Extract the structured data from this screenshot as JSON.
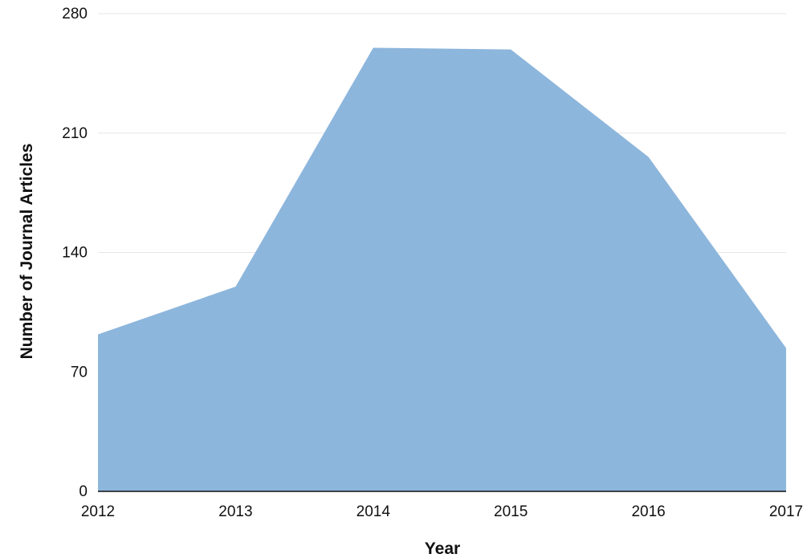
{
  "chart_data": {
    "type": "area",
    "title": "",
    "xlabel": "Year",
    "ylabel": "Number of Journal Articles",
    "x": [
      "2012",
      "2013",
      "2014",
      "2015",
      "2016",
      "2017"
    ],
    "series": [
      {
        "values": [
          92,
          120,
          260,
          259,
          196,
          84
        ]
      }
    ],
    "ylim": [
      0,
      280
    ],
    "yticks": [
      "0",
      "70",
      "140",
      "210",
      "280"
    ],
    "grid": true,
    "legend": "none",
    "colors": {
      "area_fill": "#8db6dc",
      "grid": "#e6e6e6",
      "axis": "#111111"
    }
  }
}
